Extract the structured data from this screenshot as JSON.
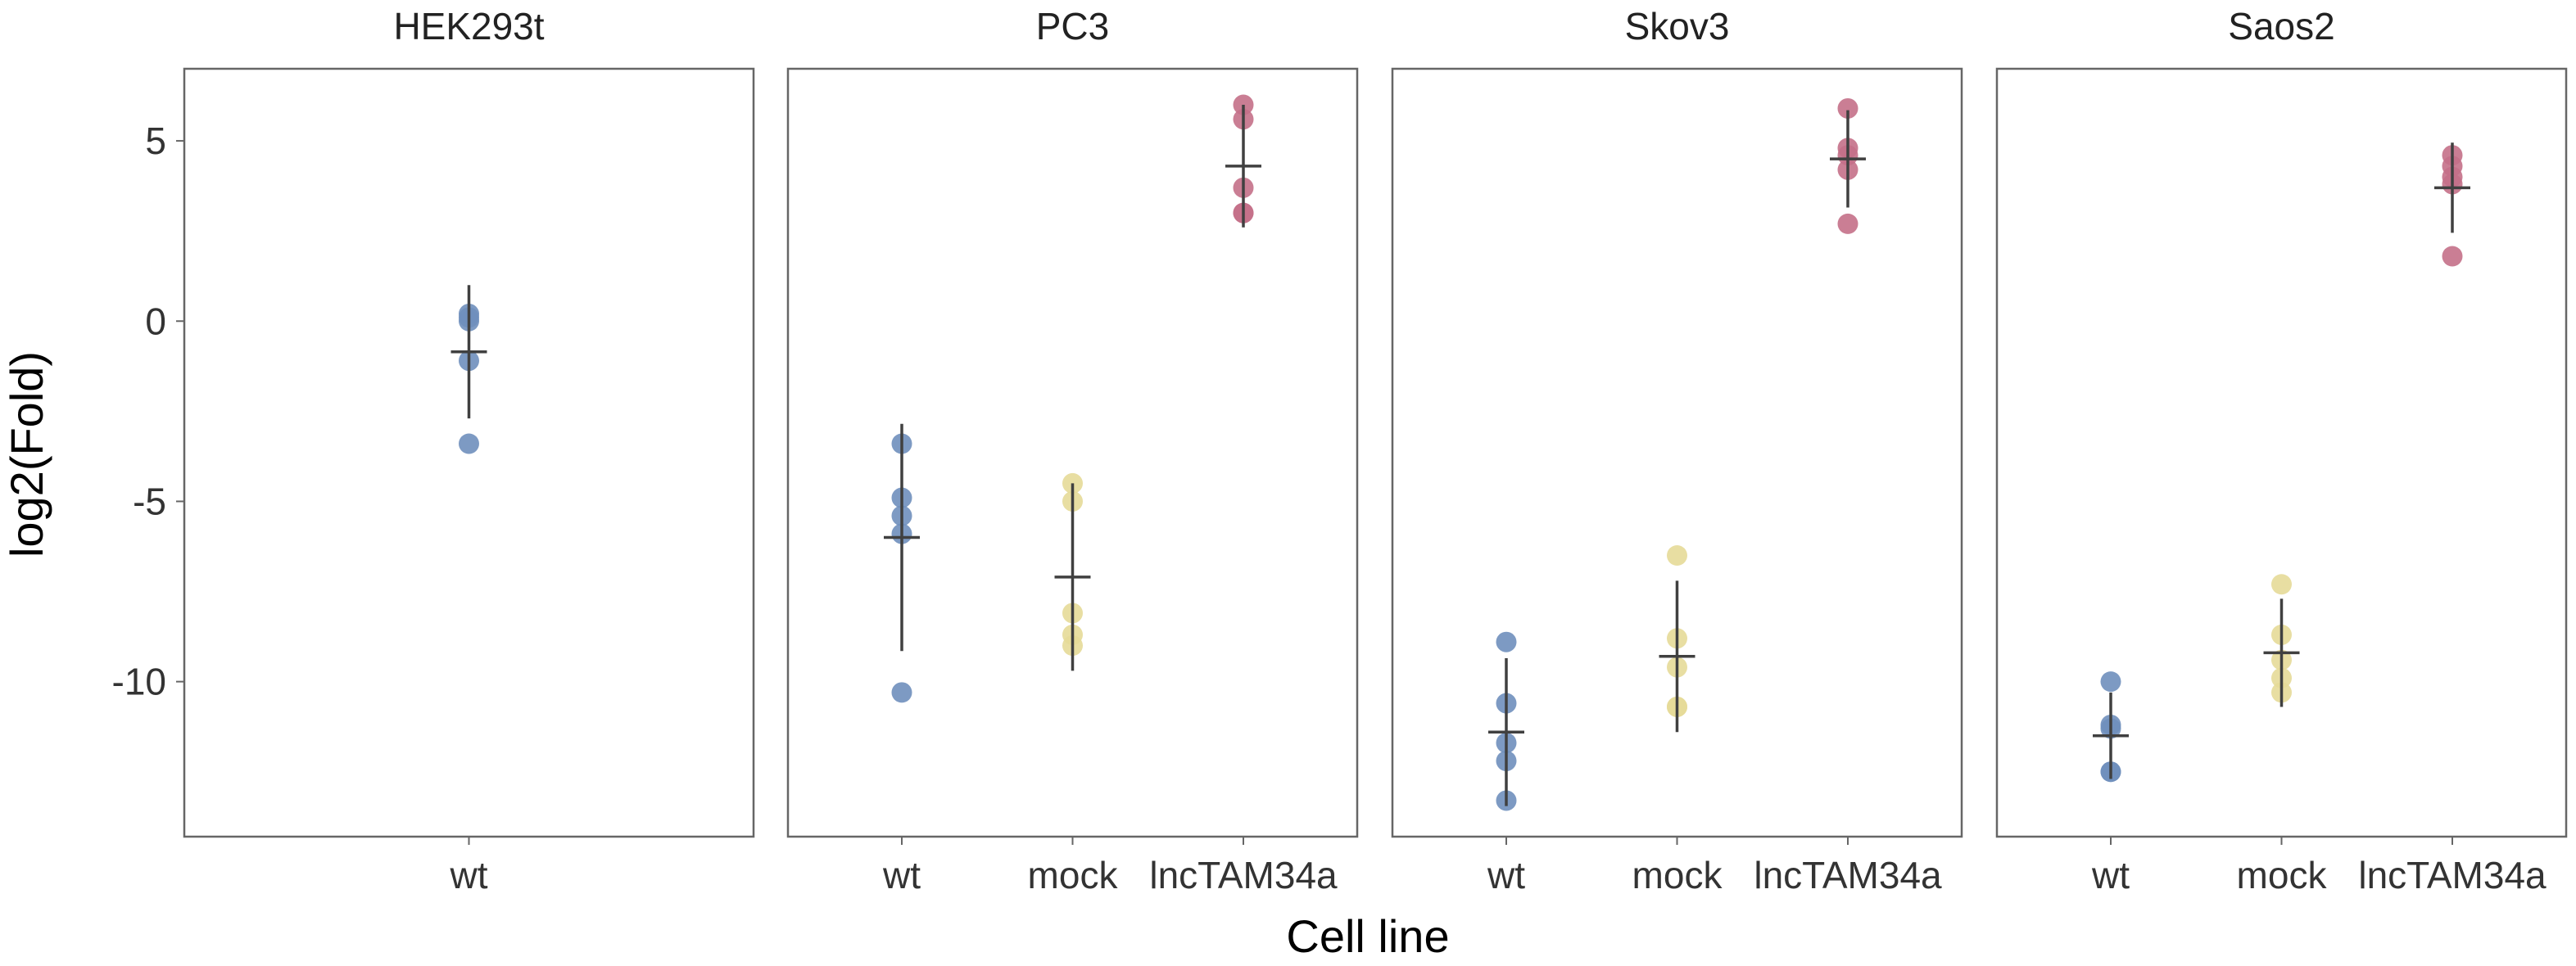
{
  "chart_data": {
    "type": "scatter",
    "subtype": "faceted dot plot with mean and standard deviation",
    "xlabel": "Cell line",
    "ylabel": "log2(Fold)",
    "ylim": [
      -14.3,
      7.0
    ],
    "yticks": [
      5,
      0,
      -5,
      -10
    ],
    "ytick_labels": [
      "5",
      "0",
      "-5",
      "-10"
    ],
    "grid": false,
    "legend": "none",
    "colors": {
      "wt": "#6f8fbd",
      "mock": "#e6da98",
      "lncTAM34a": "#c47088"
    },
    "point_opacity": 0.9,
    "summary_color": "#404040",
    "facets": [
      {
        "title": "HEK293t",
        "categories": [
          "wt"
        ],
        "groups": [
          {
            "category": "wt",
            "points": [
              0.2,
              0.1,
              0.0,
              -1.1,
              -3.4
            ],
            "mean": -0.85,
            "sd": 1.85
          }
        ]
      },
      {
        "title": "PC3",
        "categories": [
          "wt",
          "mock",
          "lncTAM34a"
        ],
        "groups": [
          {
            "category": "wt",
            "points": [
              -3.4,
              -4.9,
              -5.4,
              -5.9,
              -10.3
            ],
            "mean": -6.0,
            "sd": 3.15
          },
          {
            "category": "mock",
            "points": [
              -4.5,
              -5.0,
              -8.1,
              -8.7,
              -9.0
            ],
            "mean": -7.1,
            "sd": 2.6
          },
          {
            "category": "lncTAM34a",
            "points": [
              6.0,
              5.6,
              3.7,
              3.0,
              3.0
            ],
            "mean": 4.3,
            "sd": 1.7
          }
        ]
      },
      {
        "title": "Skov3",
        "categories": [
          "wt",
          "mock",
          "lncTAM34a"
        ],
        "groups": [
          {
            "category": "wt",
            "points": [
              -8.9,
              -10.6,
              -11.7,
              -12.2,
              -13.3
            ],
            "mean": -11.4,
            "sd": 2.05
          },
          {
            "category": "mock",
            "points": [
              -6.5,
              -8.8,
              -9.6,
              -10.7,
              -10.7
            ],
            "mean": -9.3,
            "sd": 2.1
          },
          {
            "category": "lncTAM34a",
            "points": [
              5.9,
              4.8,
              4.6,
              4.2,
              2.7
            ],
            "mean": 4.5,
            "sd": 1.35
          }
        ]
      },
      {
        "title": "Saos2",
        "categories": [
          "wt",
          "mock",
          "lncTAM34a"
        ],
        "groups": [
          {
            "category": "wt",
            "points": [
              -10.0,
              -11.2,
              -11.3,
              -12.5,
              -12.5
            ],
            "mean": -11.5,
            "sd": 1.2
          },
          {
            "category": "mock",
            "points": [
              -7.3,
              -8.7,
              -9.4,
              -9.9,
              -10.3
            ],
            "mean": -9.2,
            "sd": 1.5
          },
          {
            "category": "lncTAM34a",
            "points": [
              4.6,
              4.3,
              4.0,
              3.8,
              1.8
            ],
            "mean": 3.7,
            "sd": 1.25
          }
        ]
      }
    ]
  }
}
